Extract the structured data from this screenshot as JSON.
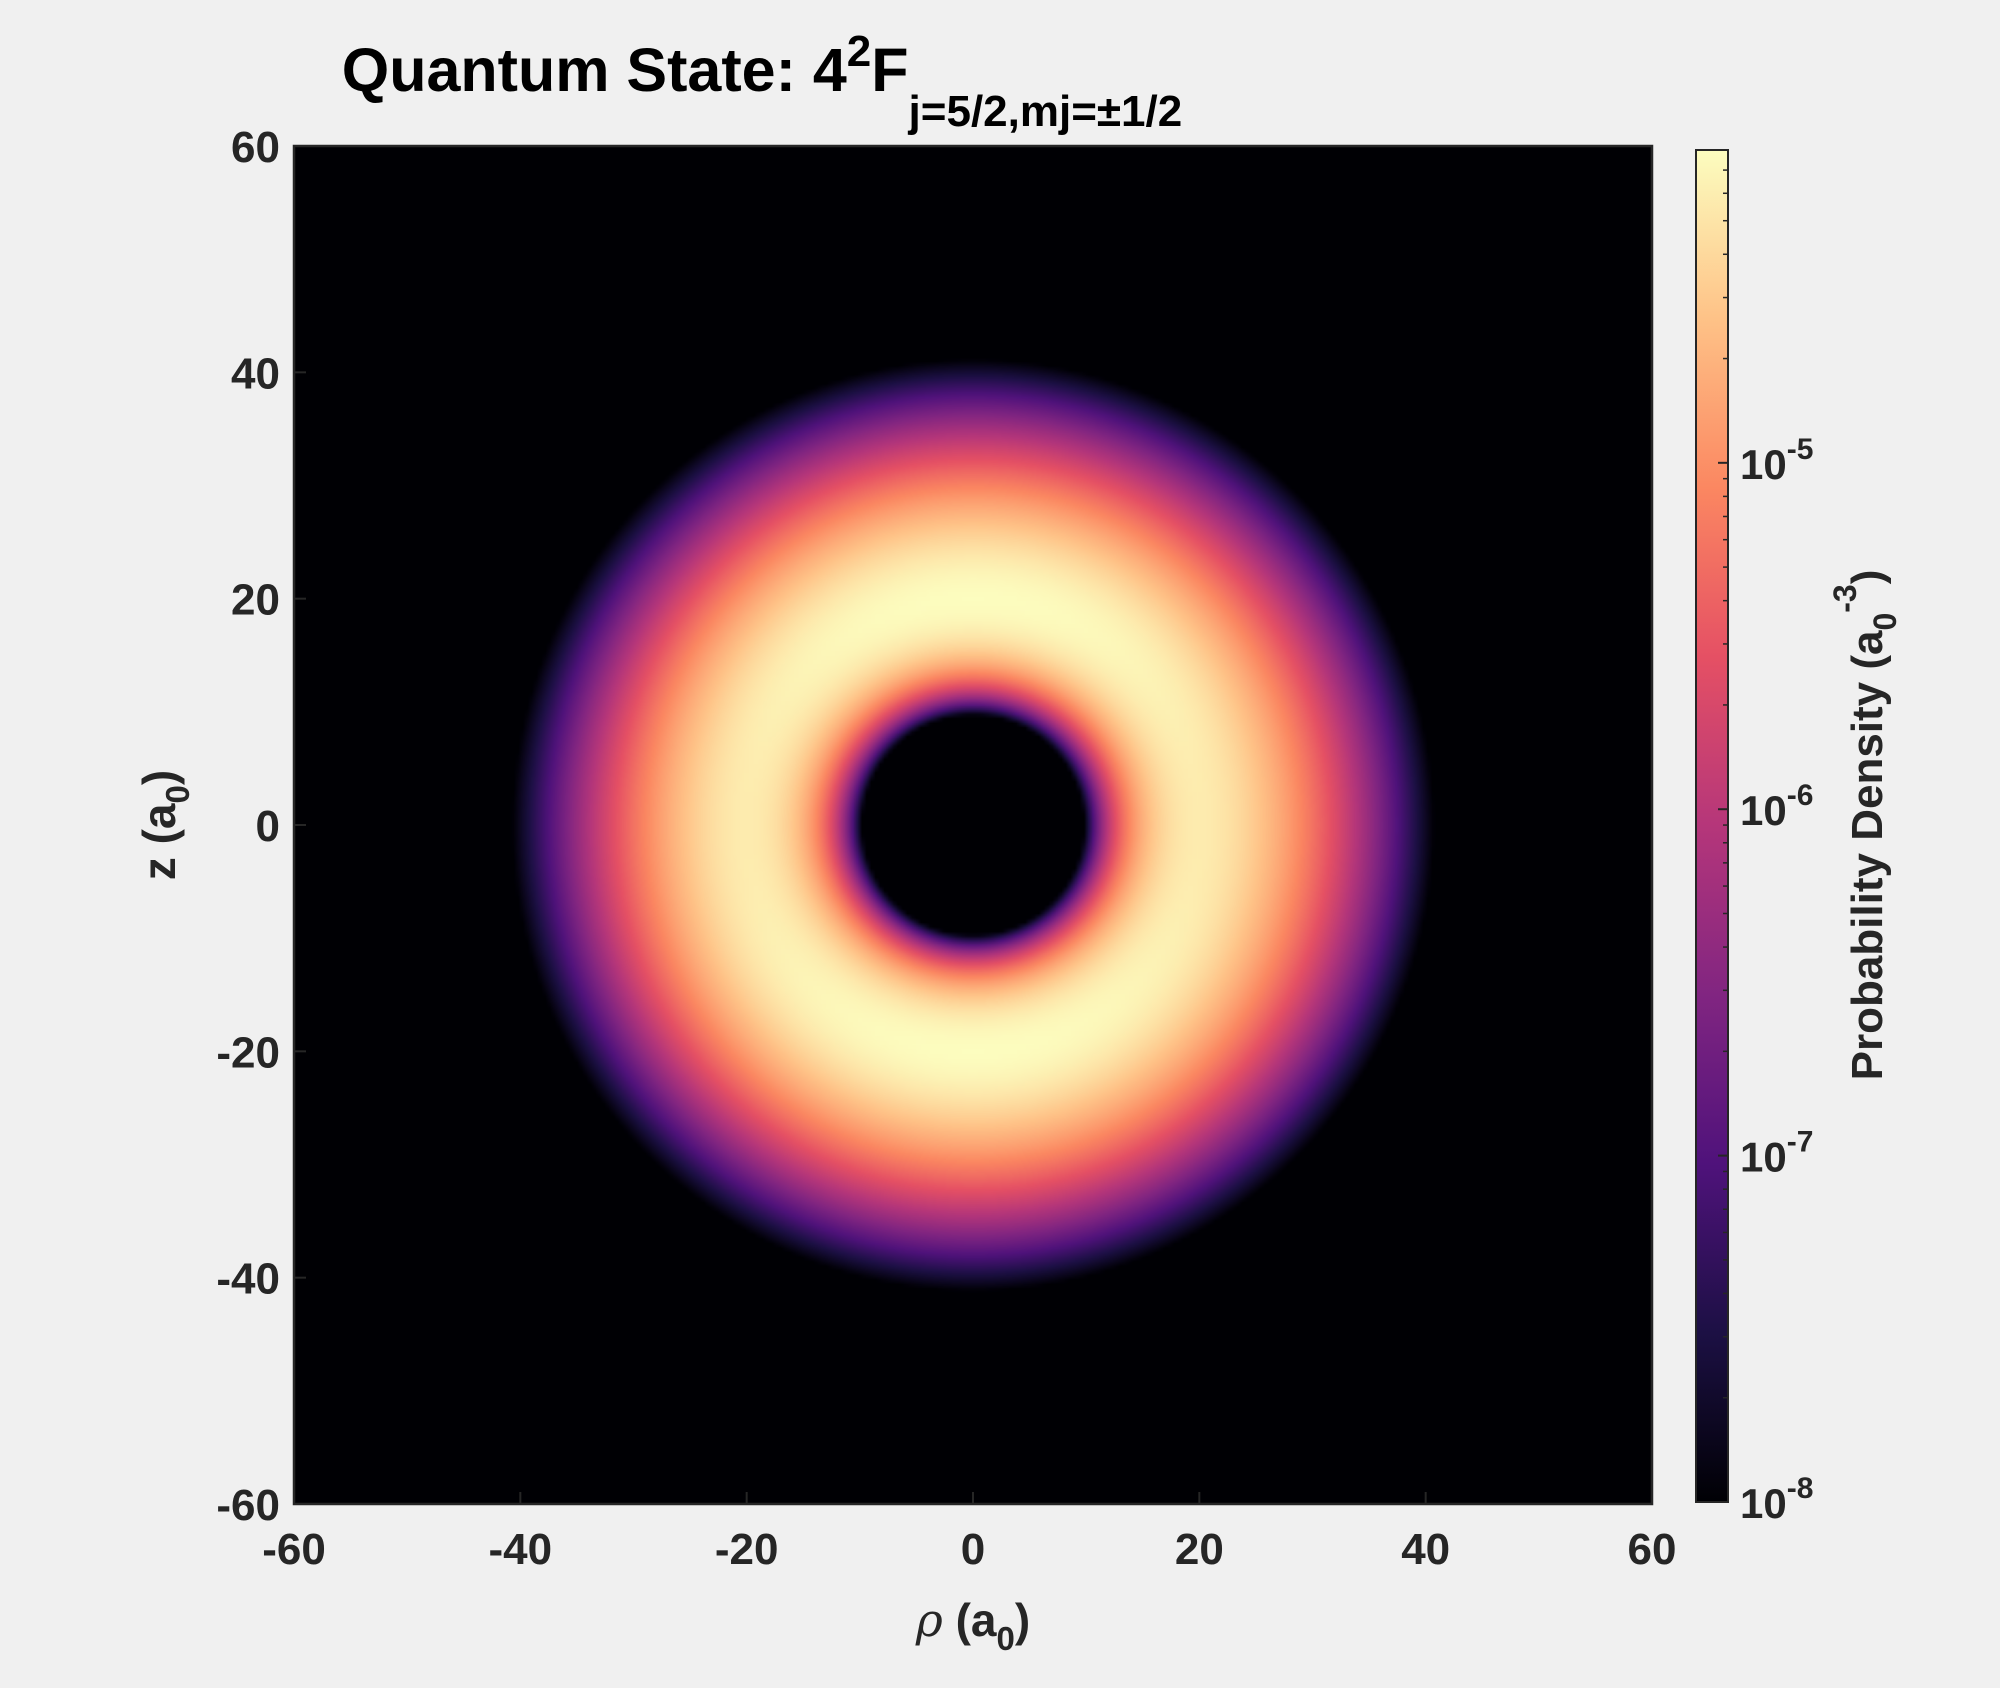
{
  "chart_data": {
    "type": "heatmap",
    "title": {
      "prefix": "Quantum State: ",
      "base": "4",
      "sup": "2",
      "letter": "F",
      "sub": "j=5/2,mj=±1/2"
    },
    "xlabel": {
      "symbol": "ρ",
      "text": " (a",
      "sub": "0",
      "close": ")"
    },
    "ylabel": {
      "text": "z (a",
      "sub": "0",
      "close": ")"
    },
    "xlim": [
      -60,
      60
    ],
    "ylim": [
      -60,
      60
    ],
    "xticks": [
      -60,
      -40,
      -20,
      0,
      20,
      40,
      60
    ],
    "yticks": [
      -60,
      -40,
      -20,
      0,
      20,
      40,
      60
    ],
    "colorbar": {
      "label": {
        "text": "Probability Density (a",
        "sub": "0",
        "sup": "-3",
        "close": ")"
      },
      "scale": "log",
      "colormap": "magma",
      "range": [
        1e-08,
        8e-05
      ],
      "ticks": [
        {
          "value": 1e-08,
          "base": "10",
          "exp": "-8"
        },
        {
          "value": 1e-07,
          "base": "10",
          "exp": "-7"
        },
        {
          "value": 1e-06,
          "base": "10",
          "exp": "-6"
        },
        {
          "value": 1e-05,
          "base": "10",
          "exp": "-5"
        }
      ]
    },
    "features": {
      "peak_lobes": [
        {
          "rho": 0,
          "z": 14,
          "density": 8e-05
        },
        {
          "rho": 0,
          "z": -14,
          "density": 8e-05
        }
      ],
      "node_at_origin": {
        "rho": 0,
        "z": 0,
        "density": 1e-08
      },
      "outer_extent_a0": 45
    },
    "colors": {
      "background": "#f0f0f0",
      "plot_background": "#000000",
      "text": "#262626",
      "title": "#000000"
    }
  }
}
